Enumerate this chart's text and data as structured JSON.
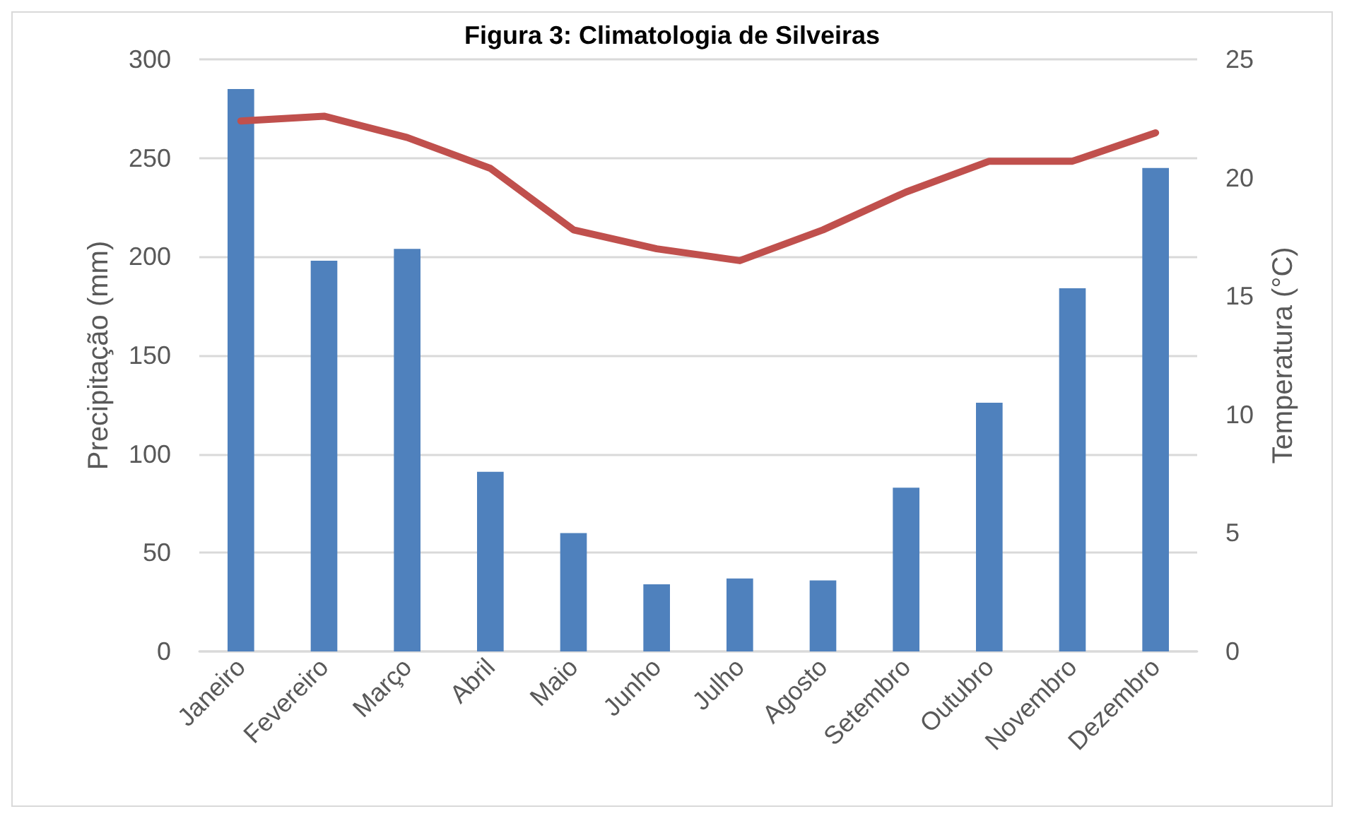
{
  "chart_data": {
    "type": "bar",
    "title": "Figura 3: Climatologia de Silveiras",
    "ylabel": "Precipitação (mm)",
    "y2label": "Temperatura (°C)",
    "categories": [
      "Janeiro",
      "Fevereiro",
      "Março",
      "Abril",
      "Maio",
      "Junho",
      "Julho",
      "Agosto",
      "Setembro",
      "Outubro",
      "Novembro",
      "Dezembro"
    ],
    "series": [
      {
        "color": "#4f81bd",
        "values": [
          285,
          198,
          204,
          91,
          60,
          34,
          37,
          36,
          83,
          126,
          184,
          245
        ]
      },
      {
        "type": "line",
        "axis": "y2",
        "color": "#c0504d",
        "values": [
          22.4,
          22.6,
          21.7,
          20.4,
          17.8,
          17.0,
          16.5,
          17.8,
          19.4,
          20.7,
          20.7,
          21.9
        ]
      }
    ],
    "ylim": [
      0,
      300
    ],
    "yticks": [
      0,
      50,
      100,
      150,
      200,
      250,
      300
    ],
    "y2lim": [
      0,
      25
    ],
    "y2ticks": [
      0,
      5,
      10,
      15,
      20,
      25
    ],
    "grid": "y",
    "marker": "none",
    "line_style": "solid"
  }
}
